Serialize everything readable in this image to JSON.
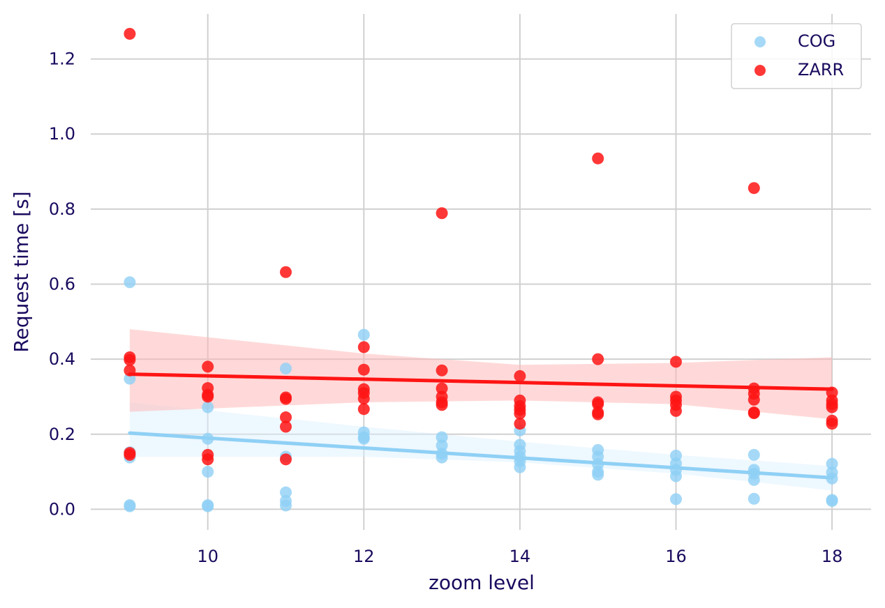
{
  "chart_data": {
    "type": "scatter",
    "title": "",
    "xlabel": "zoom level",
    "ylabel": "Request time [s]",
    "xlim": [
      8.5,
      18.5
    ],
    "ylim": [
      -0.055,
      1.32
    ],
    "xticks": [
      10,
      12,
      14,
      16,
      18
    ],
    "yticks": [
      0.0,
      0.2,
      0.4,
      0.6,
      0.8,
      1.0,
      1.2
    ],
    "xtick_labels": [
      "10",
      "12",
      "14",
      "16",
      "18"
    ],
    "ytick_labels": [
      "0.0",
      "0.2",
      "0.4",
      "0.6",
      "0.8",
      "1.0",
      "1.2"
    ],
    "grid": true,
    "legend_position": "top-right",
    "text_color": "#1a0a5e",
    "series": [
      {
        "name": "COG",
        "color": "#8fd0f5",
        "points": [
          [
            9,
            0.605
          ],
          [
            9,
            0.348
          ],
          [
            9,
            0.152
          ],
          [
            9,
            0.138
          ],
          [
            9,
            0.011
          ],
          [
            9,
            0.008
          ],
          [
            10,
            0.272
          ],
          [
            10,
            0.188
          ],
          [
            10,
            0.1
          ],
          [
            10,
            0.011
          ],
          [
            10,
            0.008
          ],
          [
            11,
            0.375
          ],
          [
            11,
            0.14
          ],
          [
            11,
            0.045
          ],
          [
            11,
            0.022
          ],
          [
            11,
            0.01
          ],
          [
            12,
            0.465
          ],
          [
            12,
            0.205
          ],
          [
            12,
            0.192
          ],
          [
            12,
            0.188
          ],
          [
            13,
            0.192
          ],
          [
            13,
            0.17
          ],
          [
            13,
            0.148
          ],
          [
            13,
            0.138
          ],
          [
            14,
            0.21
          ],
          [
            14,
            0.172
          ],
          [
            14,
            0.155
          ],
          [
            14,
            0.14
          ],
          [
            14,
            0.128
          ],
          [
            14,
            0.112
          ],
          [
            15,
            0.158
          ],
          [
            15,
            0.14
          ],
          [
            15,
            0.12
          ],
          [
            15,
            0.1
          ],
          [
            15,
            0.092
          ],
          [
            16,
            0.143
          ],
          [
            16,
            0.122
          ],
          [
            16,
            0.105
          ],
          [
            16,
            0.088
          ],
          [
            16,
            0.027
          ],
          [
            17,
            0.145
          ],
          [
            17,
            0.105
          ],
          [
            17,
            0.095
          ],
          [
            17,
            0.078
          ],
          [
            17,
            0.028
          ],
          [
            18,
            0.121
          ],
          [
            18,
            0.098
          ],
          [
            18,
            0.082
          ],
          [
            18,
            0.025
          ],
          [
            18,
            0.022
          ]
        ],
        "regression": {
          "x": [
            9,
            18
          ],
          "y": [
            0.203,
            0.084
          ]
        },
        "ci_band": {
          "x": [
            9,
            12,
            14,
            16,
            18
          ],
          "lower": [
            0.14,
            0.14,
            0.125,
            0.095,
            0.05
          ],
          "upper": [
            0.285,
            0.22,
            0.18,
            0.145,
            0.115
          ]
        }
      },
      {
        "name": "ZARR",
        "color": "#ff1414",
        "points": [
          [
            9,
            1.267
          ],
          [
            9,
            0.405
          ],
          [
            9,
            0.398
          ],
          [
            9,
            0.37
          ],
          [
            9,
            0.15
          ],
          [
            9,
            0.145
          ],
          [
            10,
            0.38
          ],
          [
            10,
            0.323
          ],
          [
            10,
            0.305
          ],
          [
            10,
            0.3
          ],
          [
            10,
            0.145
          ],
          [
            10,
            0.133
          ],
          [
            11,
            0.632
          ],
          [
            11,
            0.298
          ],
          [
            11,
            0.294
          ],
          [
            11,
            0.245
          ],
          [
            11,
            0.22
          ],
          [
            11,
            0.133
          ],
          [
            12,
            0.432
          ],
          [
            12,
            0.372
          ],
          [
            12,
            0.32
          ],
          [
            12,
            0.31
          ],
          [
            12,
            0.295
          ],
          [
            12,
            0.267
          ],
          [
            13,
            0.789
          ],
          [
            13,
            0.37
          ],
          [
            13,
            0.322
          ],
          [
            13,
            0.3
          ],
          [
            13,
            0.285
          ],
          [
            13,
            0.278
          ],
          [
            14,
            0.355
          ],
          [
            14,
            0.29
          ],
          [
            14,
            0.275
          ],
          [
            14,
            0.265
          ],
          [
            14,
            0.255
          ],
          [
            14,
            0.228
          ],
          [
            15,
            0.935
          ],
          [
            15,
            0.4
          ],
          [
            15,
            0.285
          ],
          [
            15,
            0.28
          ],
          [
            15,
            0.258
          ],
          [
            15,
            0.253
          ],
          [
            16,
            0.393
          ],
          [
            16,
            0.3
          ],
          [
            16,
            0.29
          ],
          [
            16,
            0.278
          ],
          [
            16,
            0.262
          ],
          [
            17,
            0.856
          ],
          [
            17,
            0.322
          ],
          [
            17,
            0.308
          ],
          [
            17,
            0.292
          ],
          [
            17,
            0.258
          ],
          [
            17,
            0.256
          ],
          [
            18,
            0.311
          ],
          [
            18,
            0.29
          ],
          [
            18,
            0.28
          ],
          [
            18,
            0.272
          ],
          [
            18,
            0.236
          ],
          [
            18,
            0.228
          ]
        ],
        "regression": {
          "x": [
            9,
            18
          ],
          "y": [
            0.36,
            0.32
          ]
        },
        "ci_band": {
          "x": [
            9,
            12,
            14,
            16,
            18
          ],
          "lower": [
            0.26,
            0.285,
            0.29,
            0.28,
            0.24
          ],
          "upper": [
            0.48,
            0.415,
            0.385,
            0.39,
            0.405
          ]
        }
      }
    ]
  }
}
